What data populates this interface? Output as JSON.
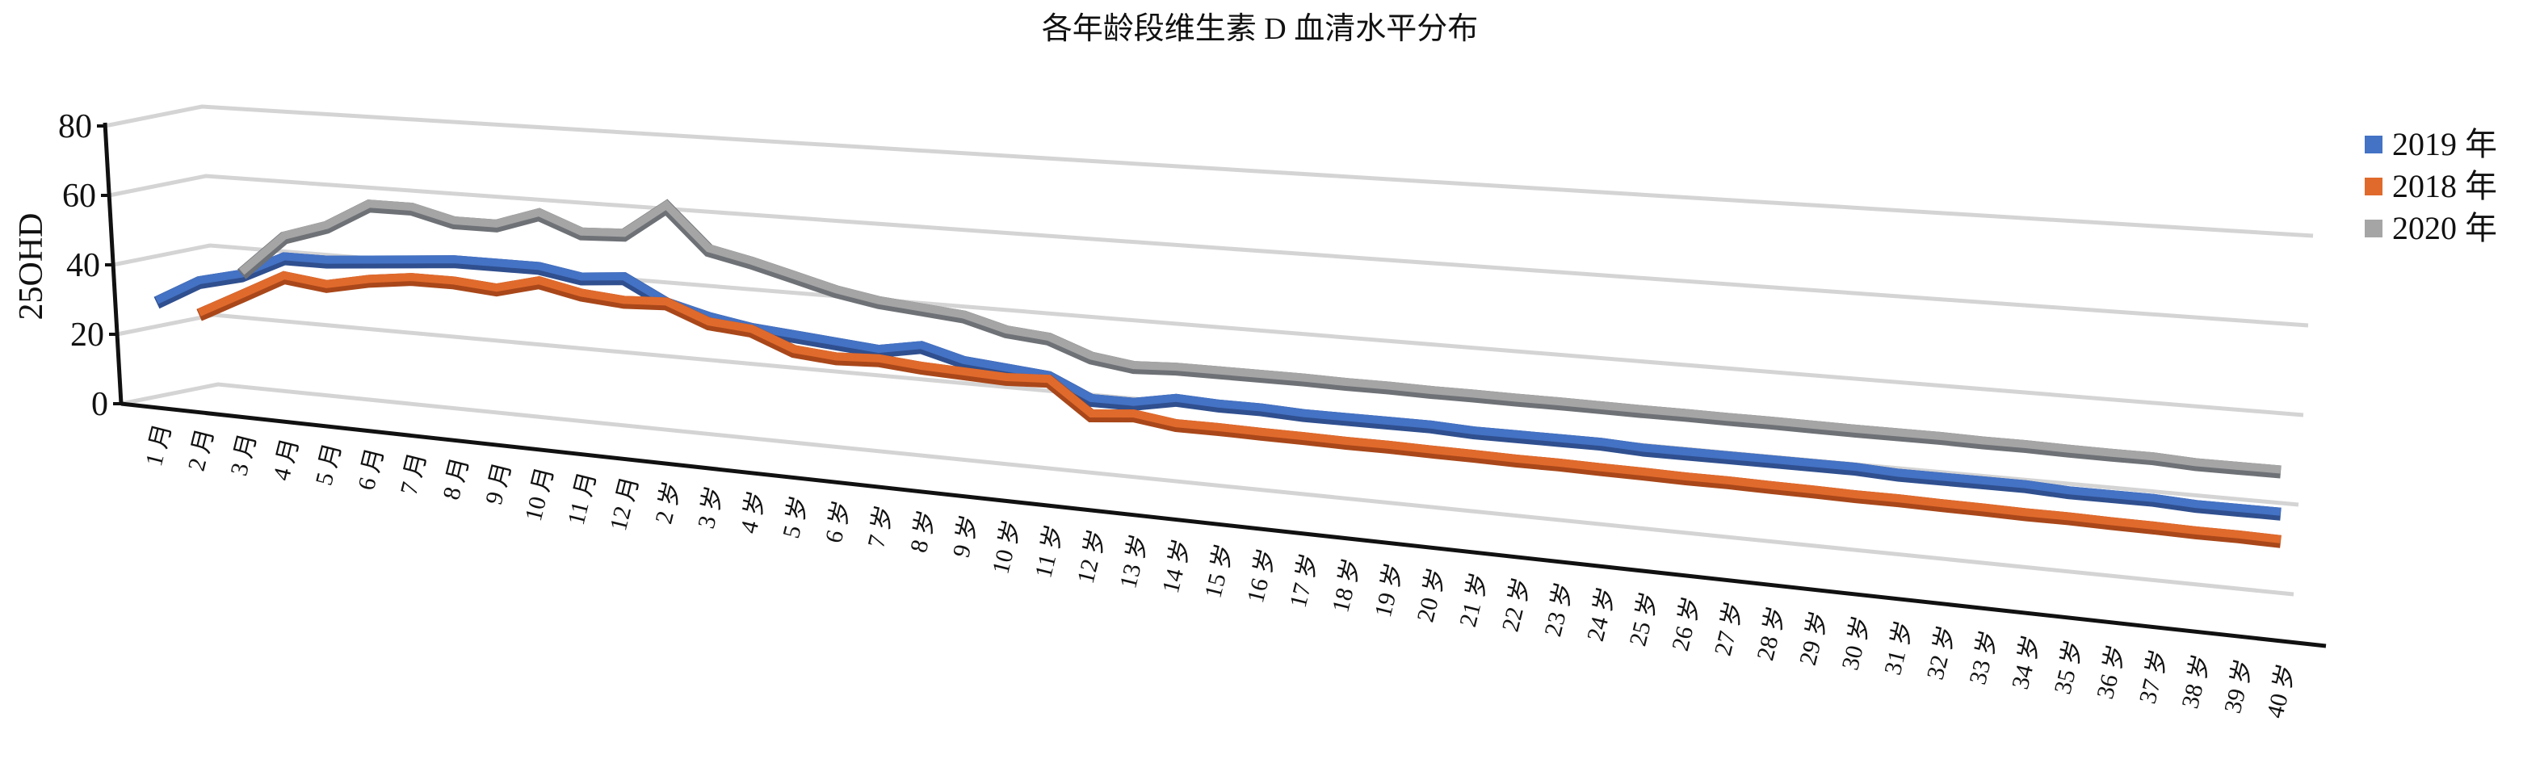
{
  "chart_data": {
    "type": "line",
    "subtype": "3d-line",
    "title": "各年龄段维生素 D 血清水平分布",
    "xlabel": "",
    "ylabel": "25OHD",
    "ylim": [
      0,
      80
    ],
    "yticks": [
      "0",
      "20",
      "40",
      "60",
      "80"
    ],
    "grid": true,
    "legend_position": "right",
    "categories": [
      "1 月",
      "2 月",
      "3 月",
      "4 月",
      "5 月",
      "6 月",
      "7 月",
      "8 月",
      "9 月",
      "10 月",
      "11 月",
      "12 月",
      "2 岁",
      "3 岁",
      "4 岁",
      "5 岁",
      "6 岁",
      "7 岁",
      "8 岁",
      "9 岁",
      "10 岁",
      "11 岁",
      "12 岁",
      "13 岁",
      "14 岁",
      "15 岁",
      "16 岁",
      "17 岁",
      "18 岁",
      "19 岁",
      "20 岁",
      "21 岁",
      "22 岁",
      "23 岁",
      "24 岁",
      "25 岁",
      "26 岁",
      "27 岁",
      "28 岁",
      "29 岁",
      "30 岁",
      "31 岁",
      "32 岁",
      "33 岁",
      "34 岁",
      "35 岁",
      "36 岁",
      "37 岁",
      "38 岁",
      "39 岁",
      "40 岁"
    ],
    "series": [
      {
        "name": "2019 年",
        "color": "#4472C4",
        "edge": "#2F4F8F",
        "values": [
          25,
          32,
          35,
          41,
          41,
          42,
          43,
          44,
          44,
          44,
          42,
          43,
          37,
          34,
          32,
          31,
          30,
          29,
          31,
          28,
          27,
          26,
          21,
          21,
          23,
          22.5,
          22.5,
          22,
          22,
          22,
          22,
          21.5,
          21.5,
          21.5,
          21.5,
          21,
          21,
          21,
          21,
          21,
          21,
          20.5,
          20.5,
          20.5,
          20.5,
          20,
          20,
          20,
          19.5,
          19.5,
          19.5
        ]
      },
      {
        "name": "2018 年",
        "color": "#E06A2C",
        "edge": "#A9471A",
        "values": [
          null,
          22.5,
          29,
          35.5,
          34,
          36.5,
          38,
          38,
          37,
          40,
          37.5,
          36.5,
          37,
          32.5,
          31.5,
          27,
          26,
          26.5,
          25.5,
          25,
          24.5,
          25,
          17,
          18,
          16.5,
          16.5,
          16.3,
          16.2,
          16,
          16,
          15.8,
          15.7,
          15.5,
          15.5,
          15.3,
          15.2,
          15,
          15,
          14.8,
          14.7,
          14.5,
          14.5,
          14.3,
          14.2,
          14,
          14,
          13.8,
          13.7,
          13.5,
          13.5,
          13.3
        ]
      },
      {
        "name": "2020 年",
        "color": "#A5A5A5",
        "edge": "#6E7176",
        "values": [
          null,
          null,
          35.5,
          47,
          51,
          58,
          58,
          55,
          55,
          59,
          54.5,
          55,
          63.5,
          52.5,
          50,
          47,
          44,
          42,
          41,
          40,
          37,
          36,
          32,
          30.5,
          31,
          31,
          31,
          31,
          30.8,
          30.8,
          30.6,
          30.6,
          30.5,
          30.5,
          30.4,
          30.3,
          30.3,
          30.2,
          30.2,
          30.1,
          30,
          30,
          30,
          29.8,
          29.8,
          29.6,
          29.5,
          29.5,
          29,
          29,
          29
        ]
      }
    ],
    "legend_order": [
      0,
      1,
      2
    ]
  }
}
